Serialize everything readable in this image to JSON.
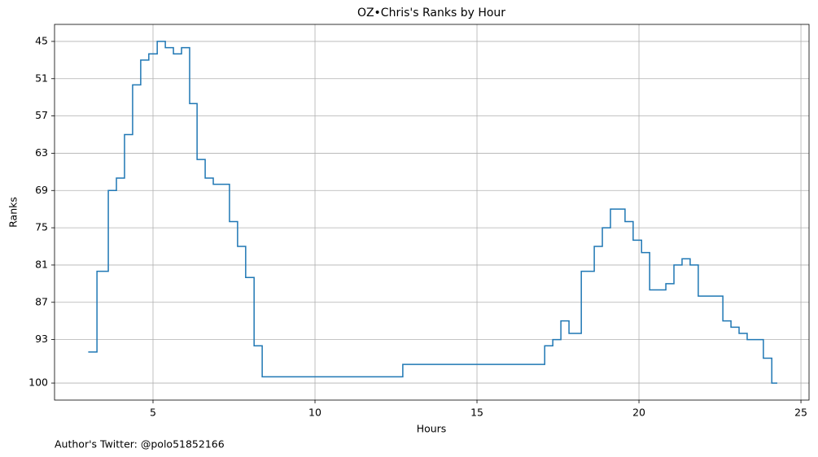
{
  "chart_data": {
    "type": "step",
    "title": "OZ•Chris's Ranks by Hour",
    "xlabel": "Hours",
    "ylabel": "Ranks",
    "footnote": "Author's Twitter: @polo51852166",
    "x": [
      3.0,
      3.27,
      3.62,
      3.87,
      4.12,
      4.37,
      4.62,
      4.87,
      5.13,
      5.38,
      5.63,
      5.88,
      6.13,
      6.36,
      6.61,
      6.86,
      7.36,
      7.61,
      7.86,
      8.12,
      8.37,
      12.71,
      17.09,
      17.34,
      17.59,
      17.84,
      18.22,
      18.62,
      18.87,
      19.12,
      19.57,
      19.82,
      20.08,
      20.33,
      20.83,
      21.08,
      21.33,
      21.58,
      21.83,
      22.59,
      22.84,
      23.09,
      23.34,
      23.84,
      24.1,
      24.27
    ],
    "series": [
      {
        "color": "#1f77b4",
        "values": [
          95,
          82,
          69,
          67,
          60,
          52,
          48,
          47,
          45,
          46,
          47,
          46,
          55,
          64,
          67,
          68,
          74,
          78,
          83,
          94,
          99,
          97,
          94,
          93,
          90,
          92,
          82,
          78,
          75,
          72,
          74,
          77,
          79,
          85,
          84,
          81,
          80,
          81,
          86,
          90,
          91,
          92,
          93,
          96,
          100,
          100
        ]
      }
    ],
    "xlim": [
      1.96,
      25.25
    ],
    "xticks": [
      5,
      10,
      15,
      20,
      25
    ],
    "ylim": [
      102.74,
      42.26
    ],
    "yticks": [
      45,
      51,
      57,
      63,
      69,
      75,
      81,
      87,
      93,
      100
    ],
    "grid": true
  }
}
